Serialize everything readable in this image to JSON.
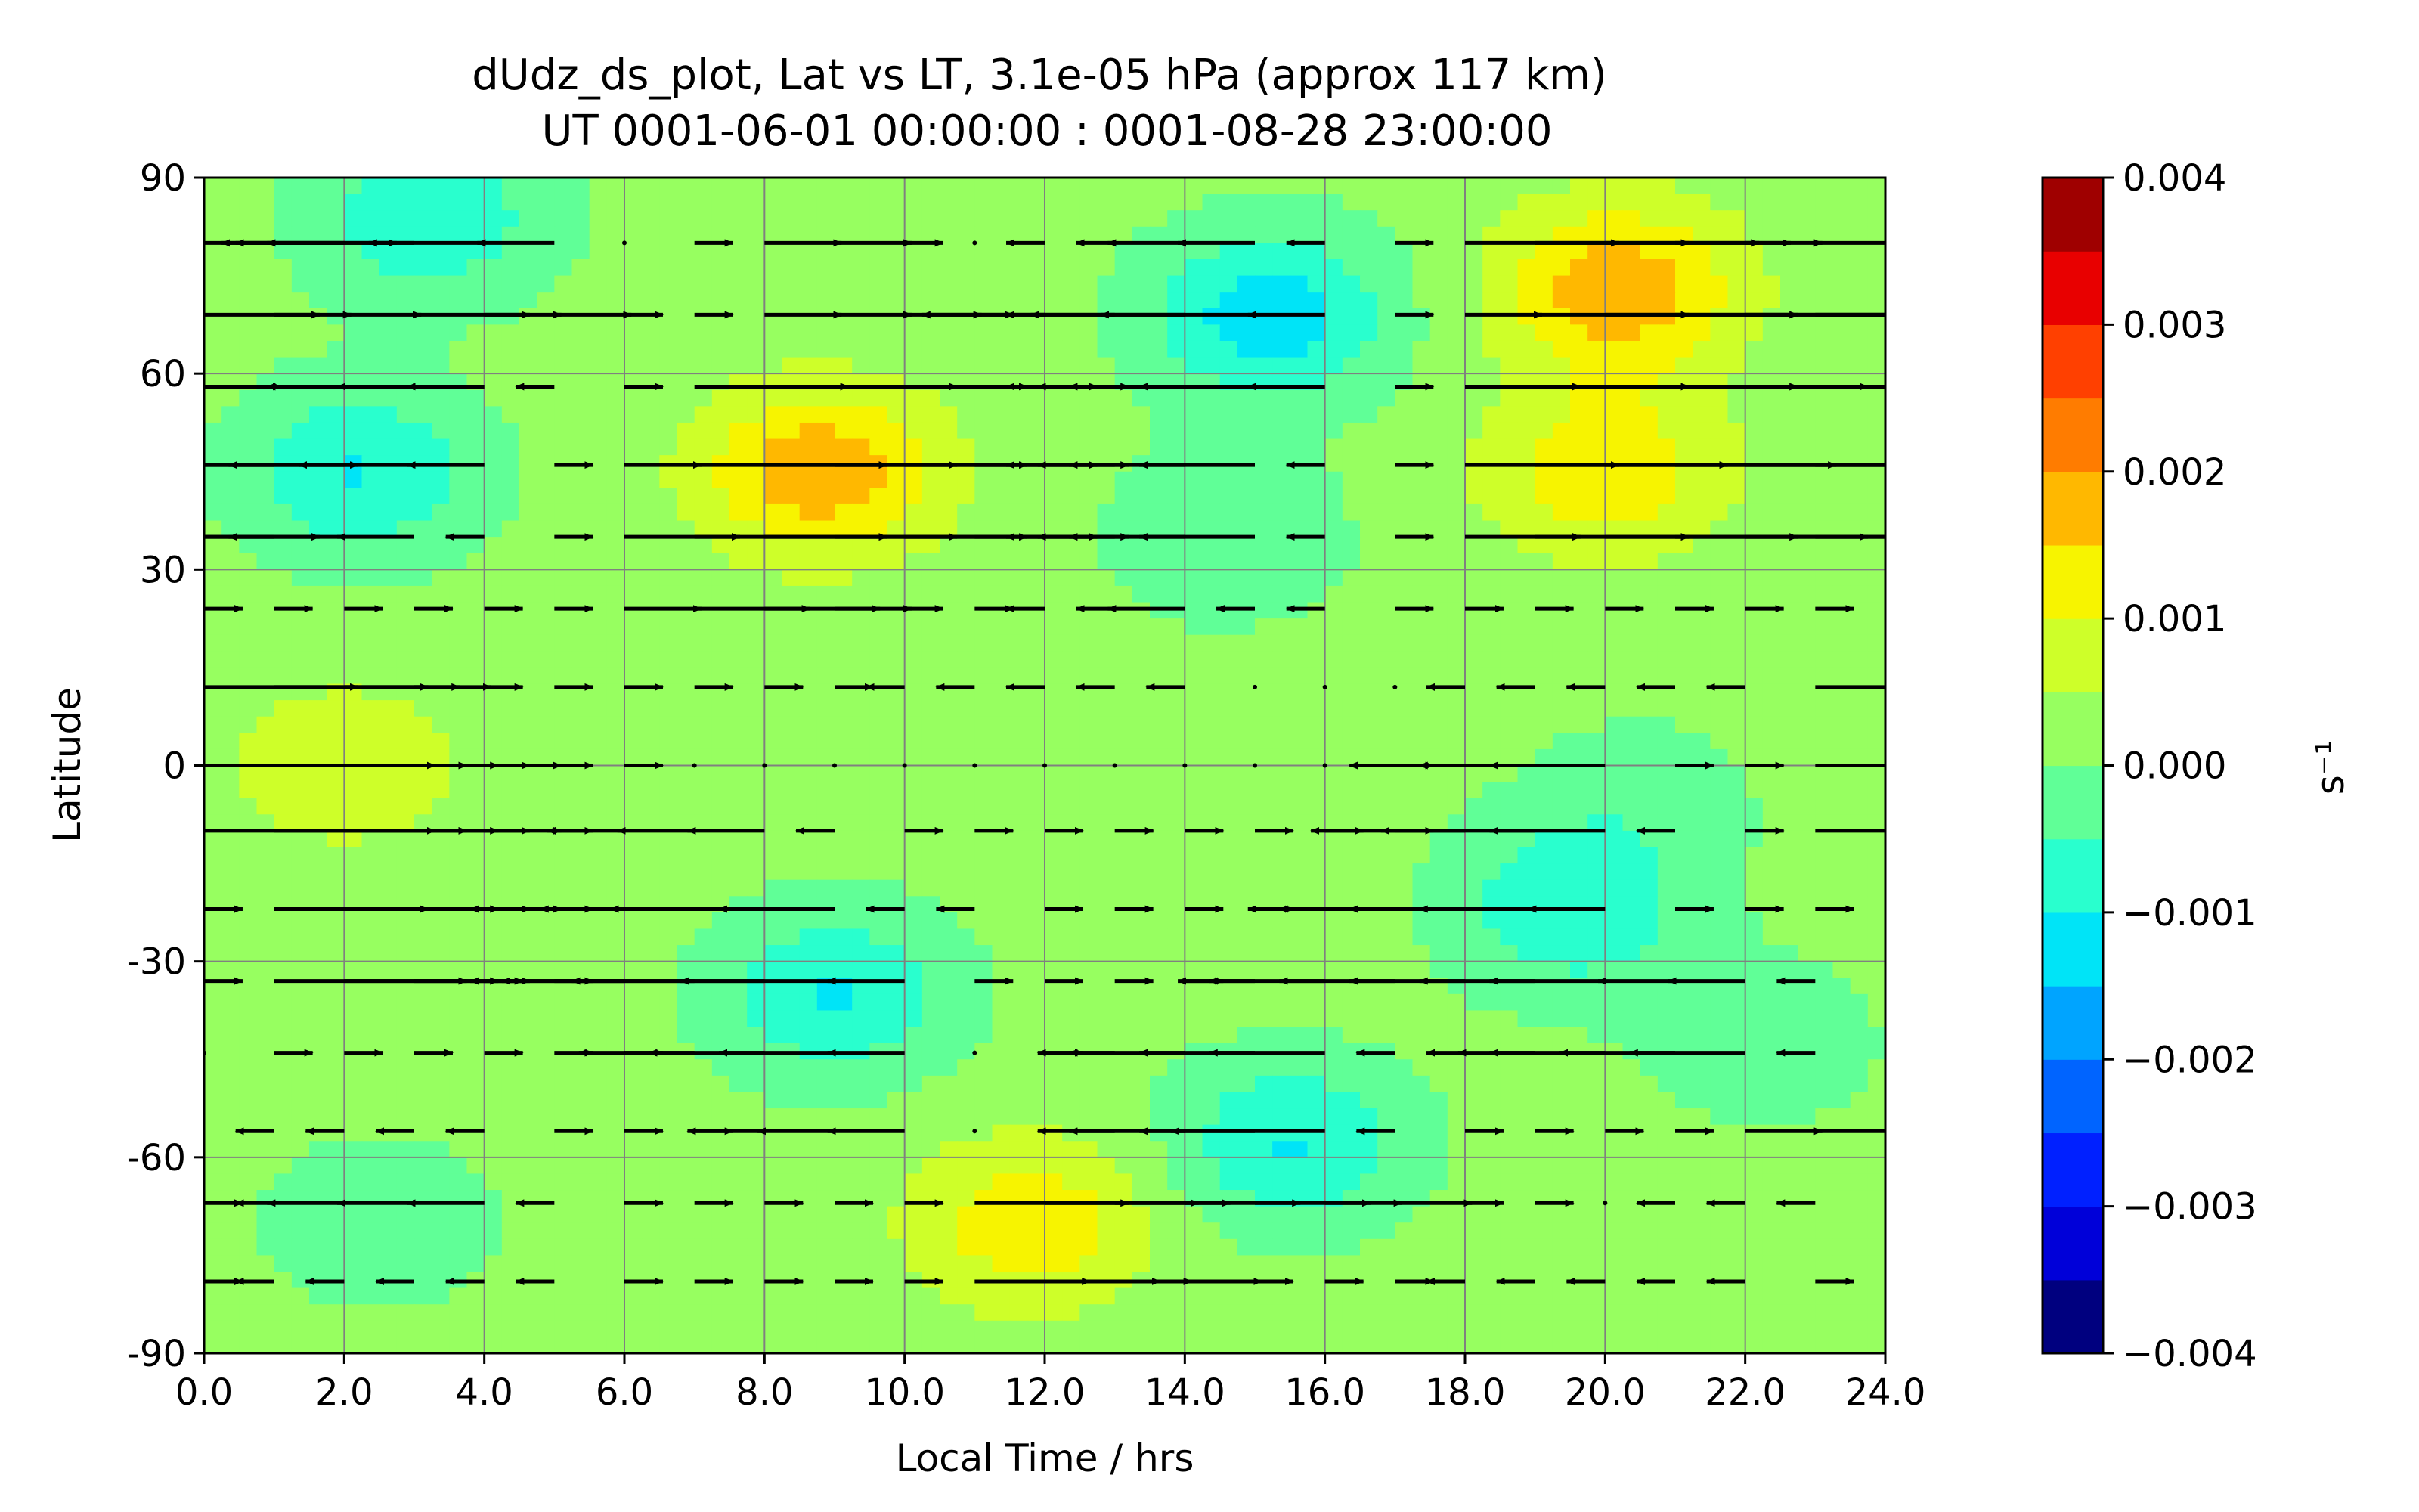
{
  "chart_data": {
    "type": "heatmap",
    "title": "dUdz_ds_plot, Lat vs LT, 3.1e-05 hPa (approx 117 km)",
    "subtitle": "UT 0001-06-01 00:00:00 : 0001-08-28 23:00:00",
    "xlabel": "Local Time / hrs",
    "ylabel": "Latitude",
    "xlim": [
      0,
      24
    ],
    "ylim": [
      -90,
      90
    ],
    "x_ticks": [
      "0.0",
      "2.0",
      "4.0",
      "6.0",
      "8.0",
      "10.0",
      "12.0",
      "14.0",
      "16.0",
      "18.0",
      "20.0",
      "22.0",
      "24.0"
    ],
    "y_ticks": [
      "90",
      "60",
      "30",
      "0",
      "-30",
      "-60",
      "-90"
    ],
    "grid": true,
    "colorbar": {
      "label": "s⁻¹",
      "range": [
        -0.004,
        0.004
      ],
      "tick_labels": [
        "0.004",
        "0.003",
        "0.002",
        "0.001",
        "0.000",
        "−0.001",
        "−0.002",
        "−0.003",
        "−0.004"
      ],
      "levels": 16,
      "colors": [
        "#00007f",
        "#0000d9",
        "#0020ff",
        "#0064ff",
        "#00a4ff",
        "#00e4f7",
        "#29ffce",
        "#60ff97",
        "#97ff60",
        "#ceff29",
        "#f7f400",
        "#ffb800",
        "#ff7c00",
        "#ff4000",
        "#e80000",
        "#9f0000"
      ]
    },
    "field_features": [
      {
        "lt": 8.8,
        "lat": 45,
        "value": 0.0017
      },
      {
        "lt": 20.2,
        "lat": 73,
        "value": 0.0017
      },
      {
        "lt": 20.0,
        "lat": 45,
        "value": 0.0012
      },
      {
        "lt": 11.8,
        "lat": -70,
        "value": 0.0012
      },
      {
        "lt": 2.0,
        "lat": 0,
        "value": 0.0007
      },
      {
        "lt": 2.2,
        "lat": 45,
        "value": -0.0012
      },
      {
        "lt": 3.2,
        "lat": 84,
        "value": -0.0011
      },
      {
        "lt": 15.2,
        "lat": 69,
        "value": -0.0015
      },
      {
        "lt": 9.0,
        "lat": -35,
        "value": -0.0012
      },
      {
        "lt": 15.5,
        "lat": -58,
        "value": -0.0012
      },
      {
        "lt": 19.5,
        "lat": -22,
        "value": -0.0011
      },
      {
        "lt": 14.6,
        "lat": 35,
        "value": -0.0006
      },
      {
        "lt": 2.5,
        "lat": -70,
        "value": -0.0005
      },
      {
        "lt": 20.5,
        "lat": -5,
        "value": -0.0004
      },
      {
        "lt": 22.2,
        "lat": -42,
        "value": -0.0005
      }
    ],
    "wind_vectors": {
      "latitudes": [
        80,
        69,
        58,
        46,
        35,
        24,
        12,
        0,
        -10,
        -22,
        -33,
        -44,
        -56,
        -67,
        -79
      ],
      "lt_start": 0,
      "lt_step": 1,
      "u": [
        [
          5,
          -1,
          -2,
          -5,
          -3,
          -2,
          0,
          1,
          2,
          2,
          1,
          0,
          -1,
          -1,
          -2,
          -2,
          -1,
          1,
          4,
          4,
          4,
          3,
          2,
          2
        ],
        [
          3,
          2,
          2,
          3,
          2,
          2,
          1,
          1,
          2,
          2,
          2,
          1,
          -1,
          -5,
          -4,
          -4,
          -2,
          1,
          2,
          4,
          5,
          6,
          6,
          6
        ],
        [
          2,
          -2,
          -2,
          -2,
          -2,
          -1,
          1,
          4,
          5,
          5,
          5,
          4,
          -1,
          -2,
          -3,
          -3,
          -2,
          1,
          3,
          4,
          5,
          5,
          5,
          3
        ],
        [
          4,
          -3,
          -3,
          -3,
          -2,
          1,
          2,
          5,
          5,
          5,
          5,
          4,
          -1,
          -2,
          -3,
          -3,
          -1,
          1,
          4,
          5,
          6,
          6,
          5,
          3
        ],
        [
          3,
          -3,
          -3,
          -2,
          -1,
          1,
          3,
          5,
          5,
          5,
          5,
          4,
          -1,
          -2,
          -3,
          -3,
          -1,
          1,
          3,
          4,
          5,
          5,
          5,
          3
        ],
        [
          1,
          1,
          1,
          1,
          1,
          1,
          2,
          3,
          3,
          2,
          1,
          1,
          -1,
          -1,
          -2,
          -1,
          -1,
          1,
          1,
          1,
          1,
          1,
          1,
          1
        ],
        [
          4,
          4,
          3,
          2,
          1,
          1,
          1,
          1,
          1,
          1,
          -1,
          -1,
          -1,
          -1,
          -1,
          0,
          0,
          0,
          -1,
          -1,
          -1,
          -1,
          -1,
          3
        ],
        [
          6,
          5,
          4,
          3,
          2,
          1,
          1,
          0,
          0,
          0,
          0,
          0,
          0,
          0,
          0,
          0,
          0,
          1,
          -3,
          -3,
          -3,
          1,
          1,
          2
        ],
        [
          6,
          5,
          4,
          3,
          2,
          1,
          -2,
          -2,
          -2,
          -1,
          1,
          1,
          1,
          1,
          1,
          1,
          1,
          1,
          -4,
          -4,
          -3,
          -1,
          1,
          3
        ],
        [
          1,
          4,
          4,
          3,
          2,
          1,
          -4,
          -4,
          -4,
          -3,
          -1,
          -1,
          1,
          1,
          1,
          1,
          -2,
          -3,
          -3,
          -3,
          -2,
          1,
          1,
          1
        ],
        [
          1,
          5,
          4,
          3,
          1,
          1,
          -4,
          -5,
          -5,
          -4,
          -2,
          1,
          1,
          1,
          1,
          -2,
          -3,
          -3,
          -3,
          -3,
          -3,
          -2,
          -2,
          -1
        ],
        [
          0,
          1,
          1,
          1,
          1,
          1,
          1,
          -3,
          -3,
          -3,
          -2,
          0,
          1,
          -2,
          -3,
          -3,
          -3,
          -1,
          -1,
          -2,
          -3,
          -3,
          -3,
          -1
        ],
        [
          -1,
          -1,
          -1,
          -1,
          -1,
          1,
          1,
          1,
          -2,
          -2,
          -2,
          0,
          0,
          -2,
          -3,
          -3,
          -4,
          -1,
          1,
          1,
          1,
          1,
          2,
          2
        ],
        [
          1,
          -1,
          -2,
          -2,
          -2,
          -1,
          1,
          1,
          1,
          1,
          1,
          4,
          4,
          3,
          3,
          3,
          2,
          2,
          1,
          1,
          0,
          -1,
          -1,
          -1
        ],
        [
          1,
          -1,
          -1,
          -1,
          -1,
          -1,
          1,
          1,
          1,
          1,
          1,
          3,
          3,
          2,
          2,
          1,
          1,
          1,
          -1,
          -1,
          -1,
          -1,
          -1,
          1
        ]
      ]
    }
  }
}
